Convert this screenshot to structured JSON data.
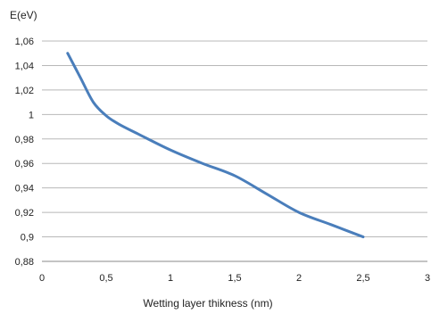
{
  "chart_data": {
    "type": "line",
    "title": "",
    "xlabel": "Wetting layer thikness (nm)",
    "ylabel": "E(eV)",
    "xlim": [
      0,
      3
    ],
    "ylim": [
      0.88,
      1.06
    ],
    "grid": "horizontal",
    "x_ticks": [
      "0",
      "0,5",
      "1",
      "1,5",
      "2",
      "2,5",
      "3"
    ],
    "y_ticks": [
      "0,88",
      "0,9",
      "0,92",
      "0,94",
      "0,96",
      "0,98",
      "1",
      "1,02",
      "1,04",
      "1,06"
    ],
    "series": [
      {
        "color": "#4a7ebb",
        "x": [
          0.2,
          0.3,
          0.4,
          0.5,
          0.6,
          0.75,
          1.0,
          1.25,
          1.5,
          1.75,
          2.0,
          2.25,
          2.5
        ],
        "y": [
          1.05,
          1.03,
          1.01,
          0.999,
          0.992,
          0.984,
          0.971,
          0.96,
          0.95,
          0.935,
          0.92,
          0.91,
          0.9
        ]
      }
    ]
  }
}
